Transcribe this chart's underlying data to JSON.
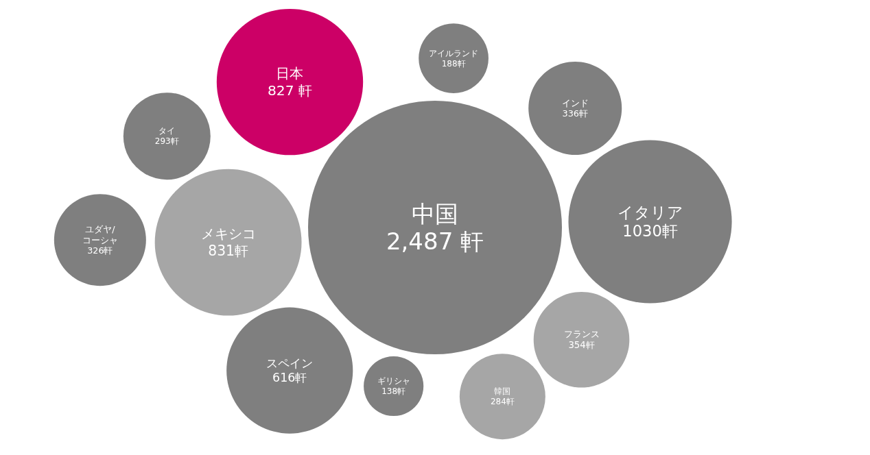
{
  "chart_data": {
    "type": "other",
    "categories": [
      "タイ",
      "ギリシャ",
      "ユダヤ/\nコーシャ",
      "インド",
      "韓国",
      "メキシコ",
      "日本",
      "中国",
      "イタリア",
      "スペイン",
      "フランス",
      "アイルランド"
    ],
    "values": [
      293,
      138,
      326,
      336,
      284,
      831,
      827,
      2487,
      1030,
      616,
      354,
      188
    ],
    "value_labels": [
      "293軒",
      "138軒",
      "326軒",
      "336軒",
      "284軒",
      "831軒",
      "827 軒",
      "2,487 軒",
      "1030軒",
      "616軒",
      "354軒",
      "188軒"
    ],
    "colors": [
      "#7f7f7f",
      "#7f7f7f",
      "#7f7f7f",
      "#7f7f7f",
      "#a6a6a6",
      "#a6a6a6",
      "#cc0066",
      "#7f7f7f",
      "#7f7f7f",
      "#7f7f7f",
      "#a6a6a6",
      "#7f7f7f"
    ]
  }
}
